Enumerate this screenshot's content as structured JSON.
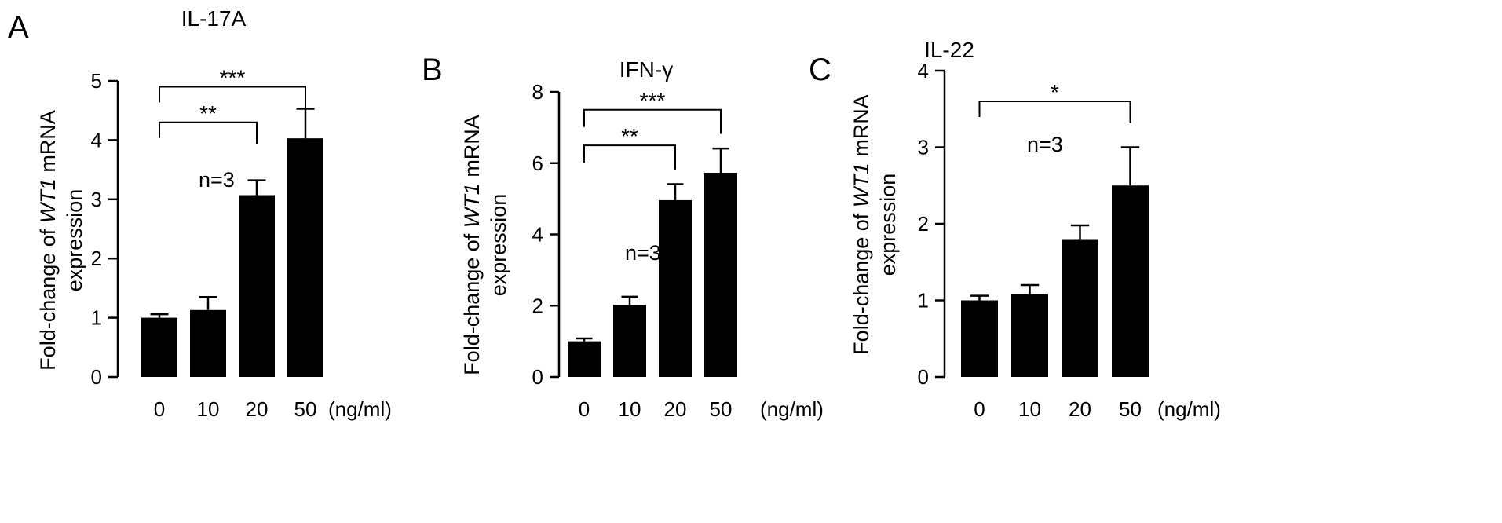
{
  "chart_data": [
    {
      "type": "bar",
      "panel_label": "A",
      "title": "IL-17A",
      "ylabel_parts": [
        "Fold-change of ",
        "WT1",
        " mRNA",
        "expression"
      ],
      "categories": [
        "0",
        "10",
        "20",
        "50"
      ],
      "unit_label": "(ng/ml)",
      "values": [
        1.0,
        1.13,
        3.07,
        4.03
      ],
      "errors": [
        0.06,
        0.22,
        0.25,
        0.5
      ],
      "ylim": [
        0,
        5
      ],
      "yticks": [
        "0",
        "1",
        "2",
        "3",
        "4",
        "5"
      ],
      "n_label": "n=3",
      "significance": [
        {
          "label": "**",
          "from": 0,
          "to": 2,
          "level": 4.3
        },
        {
          "label": "***",
          "from": 0,
          "to": 3,
          "level": 4.9
        }
      ],
      "grid": false
    },
    {
      "type": "bar",
      "panel_label": "B",
      "title": "IFN-γ",
      "ylabel_parts": [
        "Fold-change of ",
        "WT1",
        " mRNA",
        "expression"
      ],
      "categories": [
        "0",
        "10",
        "20",
        "50"
      ],
      "unit_label": "(ng/ml)",
      "values": [
        1.0,
        2.02,
        4.96,
        5.73
      ],
      "errors": [
        0.08,
        0.23,
        0.45,
        0.68
      ],
      "ylim": [
        0,
        8
      ],
      "yticks": [
        "0",
        "2",
        "4",
        "6",
        "8"
      ],
      "n_label": "n=3",
      "significance": [
        {
          "label": "**",
          "from": 0,
          "to": 2,
          "level": 6.5
        },
        {
          "label": "***",
          "from": 0,
          "to": 3,
          "level": 7.5
        }
      ],
      "grid": false
    },
    {
      "type": "bar",
      "panel_label": "C",
      "title": "IL-22",
      "ylabel_parts": [
        "Fold-change of ",
        "WT1",
        " mRNA",
        "expression"
      ],
      "categories": [
        "0",
        "10",
        "20",
        "50"
      ],
      "unit_label": "(ng/ml)",
      "values": [
        1.0,
        1.08,
        1.8,
        2.5
      ],
      "errors": [
        0.06,
        0.12,
        0.18,
        0.5
      ],
      "ylim": [
        0,
        4
      ],
      "yticks": [
        "0",
        "1",
        "2",
        "3",
        "4"
      ],
      "n_label": "n=3",
      "significance": [
        {
          "label": "*",
          "from": 0,
          "to": 3,
          "level": 3.6
        }
      ],
      "grid": false
    }
  ]
}
